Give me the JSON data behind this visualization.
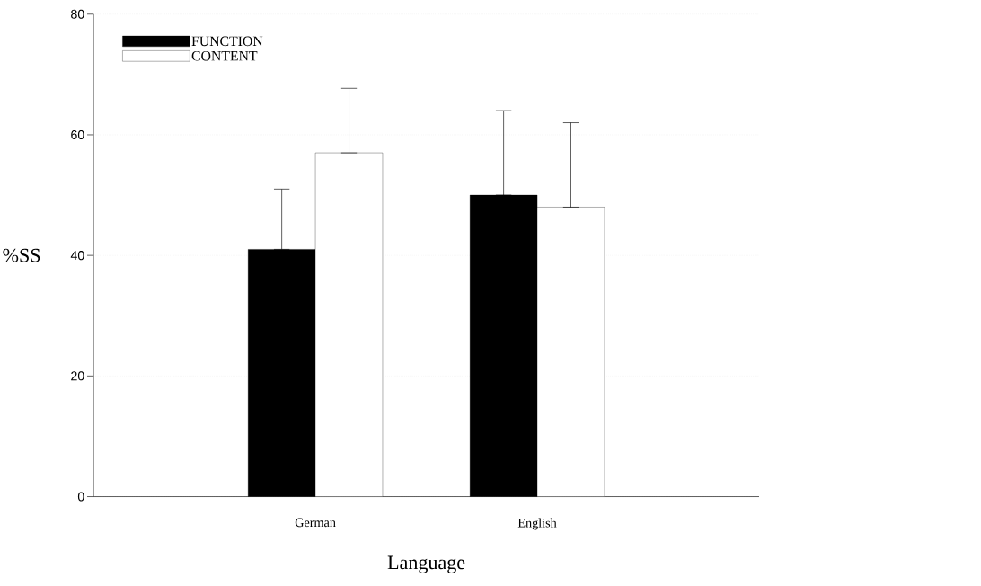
{
  "chart_data": {
    "type": "bar",
    "xlabel": "Language",
    "ylabel": "%SS",
    "categories": [
      "German",
      "English"
    ],
    "series": [
      {
        "name": "FUNCTION",
        "color": "#000000",
        "values": [
          41,
          50
        ],
        "errors": [
          [
            41,
            51
          ],
          [
            50,
            64
          ]
        ]
      },
      {
        "name": "CONTENT",
        "color": "#ffffff",
        "values": [
          57,
          48
        ],
        "errors": [
          [
            57,
            67.7
          ],
          [
            48,
            62
          ]
        ]
      }
    ],
    "ylim": [
      0,
      80
    ],
    "yticks": [
      0,
      20,
      40,
      60,
      80
    ],
    "grid": "y",
    "legend": "top left"
  }
}
